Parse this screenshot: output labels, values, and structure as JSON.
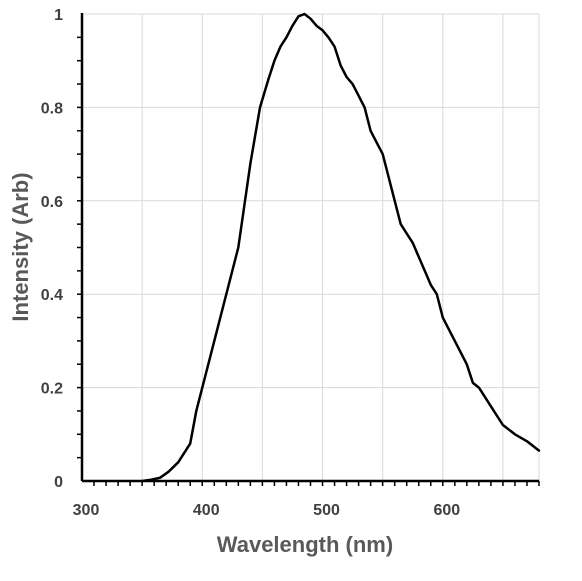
{
  "chart_data": {
    "type": "line",
    "title": "",
    "xlabel": "Wavelength (nm)",
    "ylabel": "Intensity (Arb)",
    "xlim": [
      300,
      680
    ],
    "ylim": [
      0,
      1
    ],
    "x_ticks": [
      300,
      400,
      500,
      600
    ],
    "x_tick_labels": [
      "300",
      "400",
      "500",
      "600"
    ],
    "y_ticks": [
      0,
      0.2,
      0.4,
      0.6,
      0.8,
      1
    ],
    "y_tick_labels": [
      "0",
      "0.2",
      "0.4",
      "0.6",
      "0.8",
      "1"
    ],
    "grid": true,
    "legend": "none",
    "line_color": "#000000",
    "grid_color": "#d9d9d9",
    "series": [
      {
        "x": [
          350,
          358,
          365,
          372,
          380,
          390,
          395,
          400,
          410,
          420,
          430,
          440,
          448,
          455,
          460,
          465,
          470,
          475,
          480,
          485,
          490,
          495,
          500,
          505,
          510,
          515,
          520,
          525,
          530,
          535,
          540,
          545,
          550,
          555,
          560,
          565,
          570,
          575,
          580,
          585,
          590,
          595,
          600,
          610,
          620,
          625,
          630,
          640,
          650,
          660,
          670,
          680
        ],
        "y": [
          0.0,
          0.003,
          0.007,
          0.02,
          0.04,
          0.08,
          0.15,
          0.2,
          0.3,
          0.4,
          0.5,
          0.68,
          0.8,
          0.86,
          0.9,
          0.93,
          0.95,
          0.975,
          0.995,
          1.0,
          0.99,
          0.975,
          0.965,
          0.95,
          0.93,
          0.89,
          0.865,
          0.85,
          0.825,
          0.8,
          0.75,
          0.725,
          0.7,
          0.65,
          0.6,
          0.55,
          0.53,
          0.51,
          0.48,
          0.45,
          0.42,
          0.4,
          0.35,
          0.3,
          0.25,
          0.21,
          0.2,
          0.16,
          0.12,
          0.1,
          0.085,
          0.065
        ]
      }
    ]
  }
}
